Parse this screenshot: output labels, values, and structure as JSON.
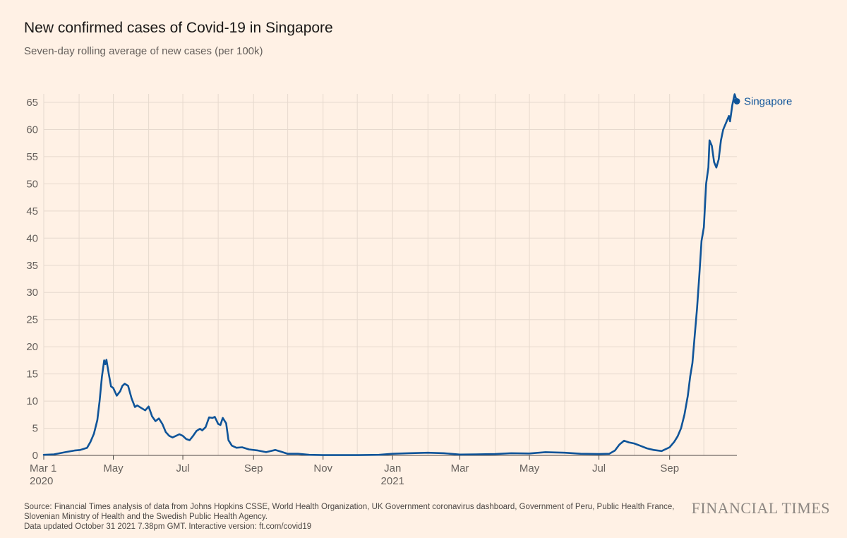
{
  "header": {
    "title": "New confirmed cases of Covid-19 in Singapore",
    "subtitle": "Seven-day rolling average of new cases (per 100k)"
  },
  "footer": {
    "source_line1": "Source: Financial Times analysis of data from Johns Hopkins CSSE, World Health Organization, UK Government coronavirus dashboard, Government of Peru, Public Health France,",
    "source_line2": "Slovenian Ministry of Health and the Swedish Public Health Agency.",
    "updated": "Data updated October 31 2021 7.38pm GMT. Interactive version: ft.com/covid19",
    "brand": "FINANCIAL TIMES"
  },
  "chart_data": {
    "type": "line",
    "title": "New confirmed cases of Covid-19 in Singapore",
    "subtitle": "Seven-day rolling average of new cases (per 100k)",
    "x_range": [
      "2020-03-01",
      "2021-10-30"
    ],
    "ylim": [
      0,
      65
    ],
    "yticks": [
      0,
      5,
      10,
      15,
      20,
      25,
      30,
      35,
      40,
      45,
      50,
      55,
      60,
      65
    ],
    "xticks": [
      {
        "date": "2020-03-01",
        "label": "Mar 1",
        "year": "2020"
      },
      {
        "date": "2020-05-01",
        "label": "May",
        "year": ""
      },
      {
        "date": "2020-07-01",
        "label": "Jul",
        "year": ""
      },
      {
        "date": "2020-09-01",
        "label": "Sep",
        "year": ""
      },
      {
        "date": "2020-11-01",
        "label": "Nov",
        "year": ""
      },
      {
        "date": "2021-01-01",
        "label": "Jan",
        "year": "2021"
      },
      {
        "date": "2021-03-01",
        "label": "Mar",
        "year": ""
      },
      {
        "date": "2021-05-01",
        "label": "May",
        "year": ""
      },
      {
        "date": "2021-07-01",
        "label": "Jul",
        "year": ""
      },
      {
        "date": "2021-09-01",
        "label": "Sep",
        "year": ""
      }
    ],
    "grid": true,
    "colors": {
      "line": "#0f5499",
      "grid": "#e6d9ce",
      "axis": "#66605c"
    },
    "series": [
      {
        "name": "Singapore",
        "label_value": 65.2,
        "points": [
          [
            "2020-03-01",
            0.1
          ],
          [
            "2020-03-10",
            0.2
          ],
          [
            "2020-03-20",
            0.6
          ],
          [
            "2020-03-28",
            0.9
          ],
          [
            "2020-04-02",
            1.0
          ],
          [
            "2020-04-08",
            1.4
          ],
          [
            "2020-04-11",
            2.5
          ],
          [
            "2020-04-14",
            4.0
          ],
          [
            "2020-04-17",
            6.5
          ],
          [
            "2020-04-19",
            10.0
          ],
          [
            "2020-04-21",
            14.5
          ],
          [
            "2020-04-23",
            17.5
          ],
          [
            "2020-04-24",
            16.8
          ],
          [
            "2020-04-25",
            17.6
          ],
          [
            "2020-04-27",
            15.0
          ],
          [
            "2020-04-29",
            12.7
          ],
          [
            "2020-05-01",
            12.4
          ],
          [
            "2020-05-04",
            11.0
          ],
          [
            "2020-05-07",
            11.8
          ],
          [
            "2020-05-09",
            12.8
          ],
          [
            "2020-05-11",
            13.2
          ],
          [
            "2020-05-14",
            12.8
          ],
          [
            "2020-05-17",
            10.5
          ],
          [
            "2020-05-20",
            8.9
          ],
          [
            "2020-05-22",
            9.2
          ],
          [
            "2020-05-25",
            8.8
          ],
          [
            "2020-05-29",
            8.3
          ],
          [
            "2020-06-01",
            9.0
          ],
          [
            "2020-06-04",
            7.2
          ],
          [
            "2020-06-07",
            6.3
          ],
          [
            "2020-06-10",
            6.8
          ],
          [
            "2020-06-13",
            5.8
          ],
          [
            "2020-06-16",
            4.3
          ],
          [
            "2020-06-19",
            3.6
          ],
          [
            "2020-06-22",
            3.3
          ],
          [
            "2020-06-25",
            3.6
          ],
          [
            "2020-06-28",
            3.9
          ],
          [
            "2020-07-01",
            3.6
          ],
          [
            "2020-07-04",
            3.0
          ],
          [
            "2020-07-07",
            2.8
          ],
          [
            "2020-07-10",
            3.6
          ],
          [
            "2020-07-13",
            4.5
          ],
          [
            "2020-07-16",
            4.9
          ],
          [
            "2020-07-18",
            4.6
          ],
          [
            "2020-07-21",
            5.2
          ],
          [
            "2020-07-24",
            7.0
          ],
          [
            "2020-07-27",
            6.9
          ],
          [
            "2020-07-29",
            7.1
          ],
          [
            "2020-08-01",
            5.8
          ],
          [
            "2020-08-03",
            5.6
          ],
          [
            "2020-08-05",
            6.9
          ],
          [
            "2020-08-08",
            5.9
          ],
          [
            "2020-08-10",
            2.8
          ],
          [
            "2020-08-13",
            1.8
          ],
          [
            "2020-08-17",
            1.4
          ],
          [
            "2020-08-22",
            1.5
          ],
          [
            "2020-08-28",
            1.1
          ],
          [
            "2020-09-05",
            0.9
          ],
          [
            "2020-09-12",
            0.6
          ],
          [
            "2020-09-20",
            1.0
          ],
          [
            "2020-09-25",
            0.7
          ],
          [
            "2020-10-01",
            0.3
          ],
          [
            "2020-10-10",
            0.3
          ],
          [
            "2020-10-20",
            0.1
          ],
          [
            "2020-11-01",
            0.05
          ],
          [
            "2020-12-01",
            0.05
          ],
          [
            "2020-12-20",
            0.1
          ],
          [
            "2021-01-01",
            0.3
          ],
          [
            "2021-01-15",
            0.4
          ],
          [
            "2021-02-01",
            0.5
          ],
          [
            "2021-02-15",
            0.4
          ],
          [
            "2021-03-01",
            0.15
          ],
          [
            "2021-03-15",
            0.2
          ],
          [
            "2021-04-01",
            0.25
          ],
          [
            "2021-04-15",
            0.4
          ],
          [
            "2021-05-01",
            0.35
          ],
          [
            "2021-05-15",
            0.6
          ],
          [
            "2021-06-01",
            0.5
          ],
          [
            "2021-06-15",
            0.3
          ],
          [
            "2021-07-01",
            0.25
          ],
          [
            "2021-07-10",
            0.3
          ],
          [
            "2021-07-15",
            0.9
          ],
          [
            "2021-07-19",
            2.0
          ],
          [
            "2021-07-23",
            2.7
          ],
          [
            "2021-07-27",
            2.4
          ],
          [
            "2021-08-01",
            2.2
          ],
          [
            "2021-08-06",
            1.8
          ],
          [
            "2021-08-12",
            1.3
          ],
          [
            "2021-08-18",
            1.0
          ],
          [
            "2021-08-25",
            0.8
          ],
          [
            "2021-09-01",
            1.5
          ],
          [
            "2021-09-05",
            2.5
          ],
          [
            "2021-09-08",
            3.5
          ],
          [
            "2021-09-11",
            5.0
          ],
          [
            "2021-09-14",
            7.5
          ],
          [
            "2021-09-17",
            11.0
          ],
          [
            "2021-09-19",
            14.5
          ],
          [
            "2021-09-21",
            17.0
          ],
          [
            "2021-09-23",
            22.0
          ],
          [
            "2021-09-25",
            27.0
          ],
          [
            "2021-09-27",
            33.0
          ],
          [
            "2021-09-29",
            39.5
          ],
          [
            "2021-10-01",
            42.0
          ],
          [
            "2021-10-03",
            50.0
          ],
          [
            "2021-10-05",
            53.0
          ],
          [
            "2021-10-06",
            58.0
          ],
          [
            "2021-10-08",
            57.0
          ],
          [
            "2021-10-10",
            54.0
          ],
          [
            "2021-10-12",
            53.0
          ],
          [
            "2021-10-14",
            54.5
          ],
          [
            "2021-10-16",
            58.0
          ],
          [
            "2021-10-18",
            60.0
          ],
          [
            "2021-10-21",
            61.5
          ],
          [
            "2021-10-23",
            62.5
          ],
          [
            "2021-10-24",
            61.5
          ],
          [
            "2021-10-26",
            64.5
          ],
          [
            "2021-10-28",
            66.5
          ],
          [
            "2021-10-30",
            65.2
          ]
        ]
      }
    ]
  }
}
